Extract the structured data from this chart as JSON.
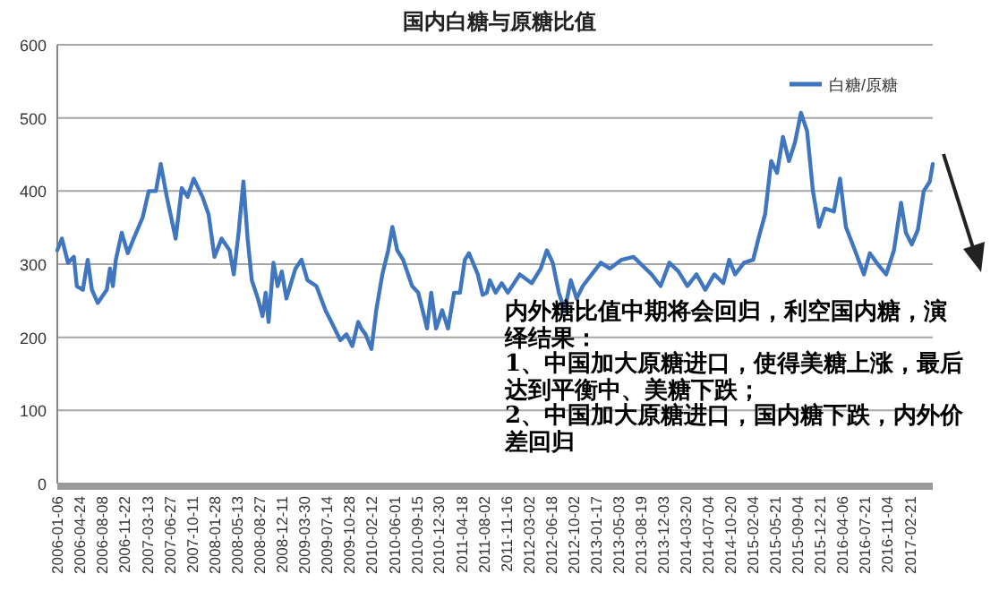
{
  "chart_data": {
    "type": "line",
    "title": "国内白糖与原糖比值",
    "x": [
      "2006-01-06",
      "2006-01-28",
      "2006-02-26",
      "2006-03-26",
      "2006-04-09",
      "2006-05-08",
      "2006-05-31",
      "2006-06-20",
      "2006-07-18",
      "2006-08-30",
      "2006-09-14",
      "2006-09-28",
      "2006-10-12",
      "2006-11-09",
      "2006-12-08",
      "2007-01-05",
      "2007-02-17",
      "2007-03-18",
      "2007-04-21",
      "2007-05-14",
      "2007-06-12",
      "2007-07-24",
      "2007-08-22",
      "2007-09-19",
      "2007-10-18",
      "2007-11-29",
      "2007-12-28",
      "2008-01-25",
      "2008-02-28",
      "2008-04-06",
      "2008-04-26",
      "2008-05-19",
      "2008-06-11",
      "2008-07-01",
      "2008-07-21",
      "2008-08-19",
      "2008-09-10",
      "2008-09-25",
      "2008-10-09",
      "2008-11-01",
      "2008-11-21",
      "2008-12-11",
      "2009-01-02",
      "2009-02-14",
      "2009-03-15",
      "2009-04-12",
      "2009-05-25",
      "2009-07-07",
      "2009-08-04",
      "2009-09-16",
      "2009-10-15",
      "2009-11-12",
      "2009-12-10",
      "2009-12-25",
      "2010-01-14",
      "2010-02-11",
      "2010-03-06",
      "2010-04-04",
      "2010-05-02",
      "2010-05-22",
      "2010-06-14",
      "2010-07-12",
      "2010-08-24",
      "2010-09-22",
      "2010-10-20",
      "2010-11-03",
      "2010-11-23",
      "2010-12-16",
      "2011-01-14",
      "2011-02-11",
      "2011-03-12",
      "2011-04-09",
      "2011-05-02",
      "2011-05-22",
      "2011-07-03",
      "2011-07-26",
      "2011-08-15",
      "2011-08-29",
      "2011-09-26",
      "2011-10-25",
      "2011-11-23",
      "2012-01-19",
      "2012-03-16",
      "2012-04-28",
      "2012-05-27",
      "2012-06-24",
      "2012-07-23",
      "2012-08-20",
      "2012-09-18",
      "2012-10-16",
      "2012-11-14",
      "2012-12-27",
      "2013-02-08",
      "2013-03-23",
      "2013-05-18",
      "2013-07-14",
      "2013-08-26",
      "2013-10-08",
      "2013-11-20",
      "2014-01-01",
      "2014-02-13",
      "2014-03-28",
      "2014-05-10",
      "2014-06-21",
      "2014-08-03",
      "2014-09-15",
      "2014-10-13",
      "2014-11-10",
      "2014-12-23",
      "2015-02-04",
      "2015-03-05",
      "2015-04-02",
      "2015-05-01",
      "2015-05-29",
      "2015-06-26",
      "2015-07-25",
      "2015-08-22",
      "2015-09-20",
      "2015-10-19",
      "2015-11-16",
      "2015-12-15",
      "2016-01-12",
      "2016-02-24",
      "2016-03-24",
      "2016-04-21",
      "2016-06-03",
      "2016-07-16",
      "2016-08-13",
      "2016-09-25",
      "2016-10-30",
      "2016-12-06",
      "2017-01-09",
      "2017-02-01",
      "2017-03-01",
      "2017-03-30",
      "2017-04-27",
      "2017-05-26",
      "2017-06-09"
    ],
    "series": [
      {
        "name": "白糖/原糖",
        "color": "#3f76bf",
        "values": [
          319,
          335,
          302,
          310,
          270,
          265,
          306,
          265,
          247,
          265,
          294,
          270,
          306,
          343,
          315,
          335,
          364,
          400,
          400,
          437,
          392,
          335,
          404,
          392,
          417,
          392,
          368,
          310,
          335,
          319,
          286,
          343,
          413,
          335,
          278,
          253,
          229,
          261,
          221,
          302,
          270,
          290,
          253,
          294,
          306,
          278,
          270,
          237,
          221,
          196,
          204,
          188,
          221,
          212,
          204,
          184,
          237,
          286,
          319,
          351,
          319,
          306,
          270,
          261,
          229,
          212,
          261,
          212,
          237,
          212,
          261,
          261,
          306,
          315,
          286,
          258,
          261,
          278,
          261,
          274,
          261,
          286,
          274,
          294,
          319,
          302,
          261,
          237,
          278,
          253,
          270,
          286,
          302,
          294,
          306,
          310,
          298,
          286,
          270,
          302,
          290,
          270,
          286,
          265,
          286,
          274,
          306,
          286,
          302,
          306,
          339,
          368,
          441,
          425,
          474,
          441,
          466,
          507,
          482,
          400,
          351,
          376,
          372,
          417,
          351,
          319,
          286,
          315,
          298,
          286,
          319,
          384,
          343,
          327,
          347,
          400,
          413,
          437
        ]
      }
    ],
    "xlim": [
      "2006-01-06",
      "2017-06-09"
    ],
    "xticks": [
      "2006-01-06",
      "2006-04-24",
      "2006-08-08",
      "2006-11-22",
      "2007-03-13",
      "2007-06-27",
      "2007-10-11",
      "2008-01-28",
      "2008-05-13",
      "2008-08-27",
      "2008-12-11",
      "2009-03-30",
      "2009-07-14",
      "2009-10-28",
      "2010-02-12",
      "2010-06-01",
      "2010-09-15",
      "2010-12-30",
      "2011-04-18",
      "2011-08-02",
      "2011-11-16",
      "2012-03-02",
      "2012-06-18",
      "2012-10-02",
      "2013-01-17",
      "2013-05-03",
      "2013-08-19",
      "2013-12-03",
      "2014-03-20",
      "2014-07-04",
      "2014-10-20",
      "2015-02-04",
      "2015-05-21",
      "2015-09-04",
      "2015-12-21",
      "2016-04-06",
      "2016-07-21",
      "2016-11-04",
      "2017-02-21"
    ],
    "ylim": [
      0,
      600
    ],
    "yticks": [
      0,
      100,
      200,
      300,
      400,
      500,
      600
    ],
    "grid": "y",
    "legend": "top right",
    "line_style": "solid",
    "annotations": [
      "内外糖比值中期将会回归，利空国内糖，演绎结果：\n1、中国加大原糖进口，使得美糖上涨，最后达到平衡中、美糖下跌；\n2、中国加大原糖进口，国内糖下跌，内外价差回归"
    ]
  }
}
